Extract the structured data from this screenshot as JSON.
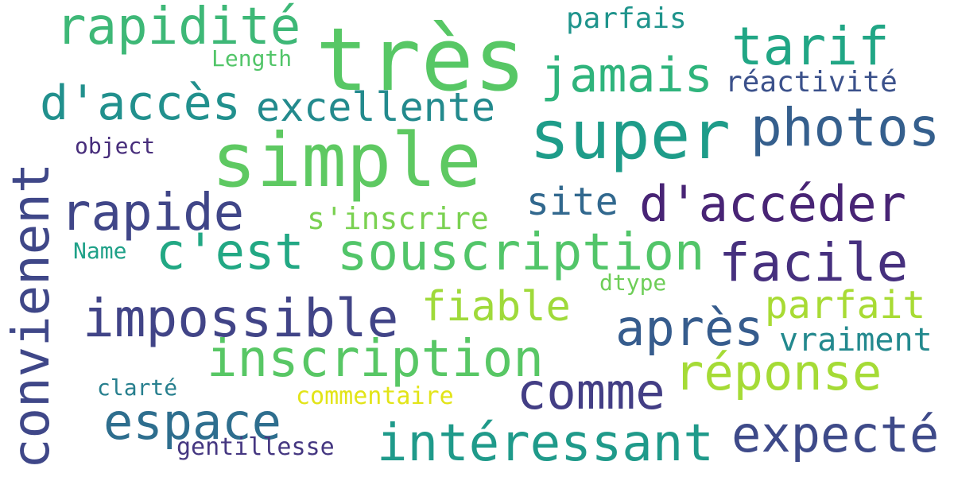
{
  "words": [
    {
      "text": "très",
      "color": "#57c765"
    },
    {
      "text": "rapidité",
      "color": "#3eb877"
    },
    {
      "text": "tarif",
      "color": "#21a685"
    },
    {
      "text": "parfais",
      "color": "#1f948c"
    },
    {
      "text": "Length",
      "color": "#52c569"
    },
    {
      "text": "jamais",
      "color": "#2fb47c"
    },
    {
      "text": "réactivité",
      "color": "#3b518b"
    },
    {
      "text": "d'accès",
      "color": "#21908d"
    },
    {
      "text": "excellente",
      "color": "#238a8d"
    },
    {
      "text": "super",
      "color": "#1e9c89"
    },
    {
      "text": "photos",
      "color": "#355f8d"
    },
    {
      "text": "object",
      "color": "#472d7b"
    },
    {
      "text": "simple",
      "color": "#5ec962"
    },
    {
      "text": "convienent",
      "color": "#3f4788"
    },
    {
      "text": "rapide",
      "color": "#404688"
    },
    {
      "text": "site",
      "color": "#31688e"
    },
    {
      "text": "d'accéder",
      "color": "#482475"
    },
    {
      "text": "s'inscrire",
      "color": "#7ad151"
    },
    {
      "text": "c'est",
      "color": "#22a884"
    },
    {
      "text": "souscription",
      "color": "#52c569"
    },
    {
      "text": "facile",
      "color": "#46307e"
    },
    {
      "text": "Name",
      "color": "#1fa188"
    },
    {
      "text": "dtype",
      "color": "#6ece58"
    },
    {
      "text": "fiable",
      "color": "#9fda3a"
    },
    {
      "text": "parfait",
      "color": "#a8db34"
    },
    {
      "text": "impossible",
      "color": "#414487"
    },
    {
      "text": "après",
      "color": "#365c8d"
    },
    {
      "text": "vraiment",
      "color": "#23898e"
    },
    {
      "text": "inscription",
      "color": "#58c765"
    },
    {
      "text": "réponse",
      "color": "#a5db36"
    },
    {
      "text": "comme",
      "color": "#433e85"
    },
    {
      "text": "clarté",
      "color": "#277f8e"
    },
    {
      "text": "commentaire",
      "color": "#e2e418"
    },
    {
      "text": "espace",
      "color": "#2e6e8e"
    },
    {
      "text": "expecté",
      "color": "#3e4a89"
    },
    {
      "text": "intéressant",
      "color": "#1f9a8a"
    },
    {
      "text": "gentillesse",
      "color": "#453781"
    }
  ]
}
